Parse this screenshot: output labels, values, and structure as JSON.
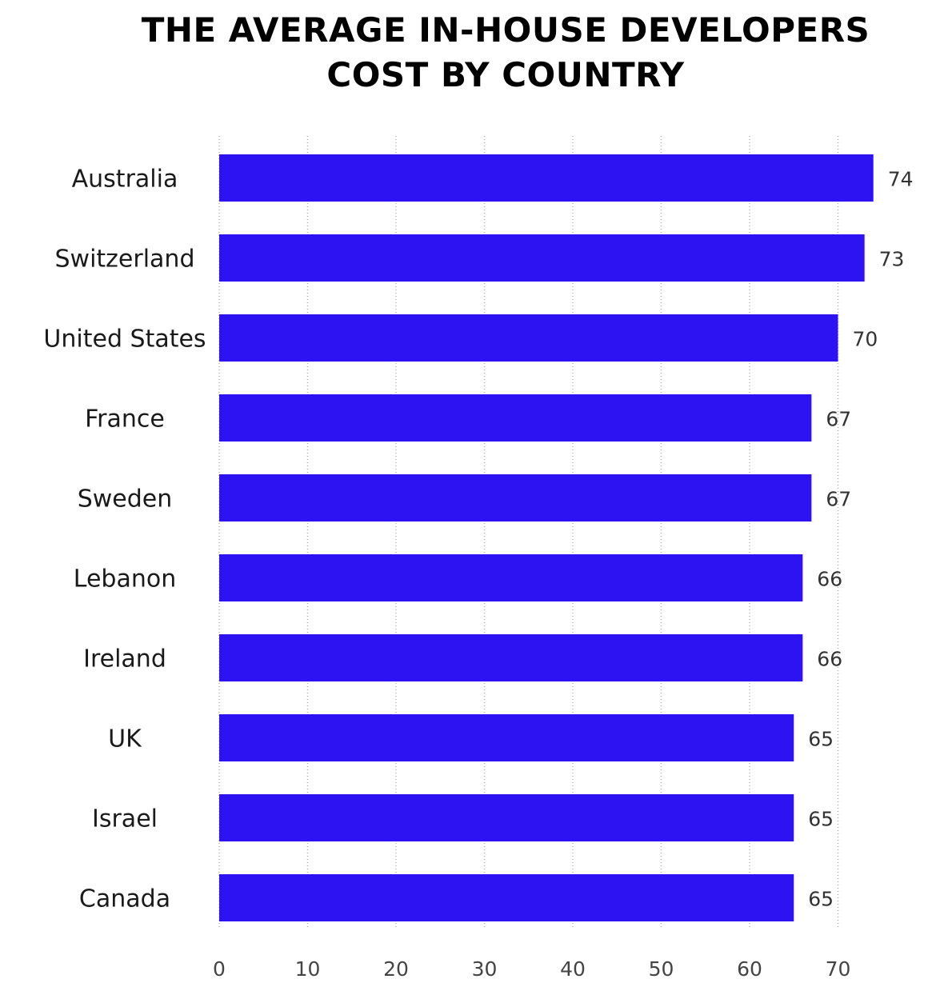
{
  "chart_data": {
    "type": "bar",
    "orientation": "horizontal",
    "title": "THE AVERAGE IN-HOUSE DEVELOPERS COST BY COUNTRY",
    "title_lines": [
      "THE AVERAGE IN-HOUSE DEVELOPERS",
      "COST BY COUNTRY"
    ],
    "xlabel": "",
    "ylabel": "",
    "categories": [
      "Australia",
      "Switzerland",
      "United States",
      "France",
      "Sweden",
      "Lebanon",
      "Ireland",
      "UK",
      "Israel",
      "Canada"
    ],
    "values": [
      74,
      73,
      70,
      67,
      67,
      66,
      66,
      65,
      65,
      65
    ],
    "xlim": [
      0,
      70
    ],
    "xticks": [
      0,
      10,
      20,
      30,
      40,
      50,
      60,
      70
    ],
    "grid": true,
    "legend": false,
    "bar_color": "#2e13f2",
    "data_labels": true
  }
}
